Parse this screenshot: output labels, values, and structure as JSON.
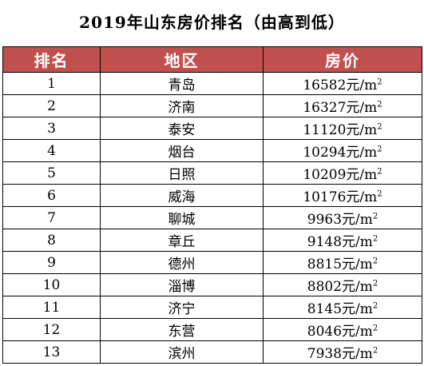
{
  "title": "2019年山东房价排名（由高到低）",
  "colors": {
    "header_bg": "#c0504d",
    "header_text": "#ffffff",
    "border": "#000000"
  },
  "headers": {
    "rank": "排名",
    "region": "地区",
    "price": "房价"
  },
  "unit": {
    "base": "元/m",
    "exponent": "2"
  },
  "rows": [
    {
      "rank": "1",
      "region": "青岛",
      "price": "16582"
    },
    {
      "rank": "2",
      "region": "济南",
      "price": "16327"
    },
    {
      "rank": "3",
      "region": "泰安",
      "price": "11120"
    },
    {
      "rank": "4",
      "region": "烟台",
      "price": "10294"
    },
    {
      "rank": "5",
      "region": "日照",
      "price": "10209"
    },
    {
      "rank": "6",
      "region": "威海",
      "price": "10176"
    },
    {
      "rank": "7",
      "region": "聊城",
      "price": "9963"
    },
    {
      "rank": "8",
      "region": "章丘",
      "price": "9148"
    },
    {
      "rank": "9",
      "region": "德州",
      "price": "8815"
    },
    {
      "rank": "10",
      "region": "淄博",
      "price": "8802"
    },
    {
      "rank": "11",
      "region": "济宁",
      "price": "8145"
    },
    {
      "rank": "12",
      "region": "东营",
      "price": "8046"
    },
    {
      "rank": "13",
      "region": "滨州",
      "price": "7938"
    }
  ]
}
